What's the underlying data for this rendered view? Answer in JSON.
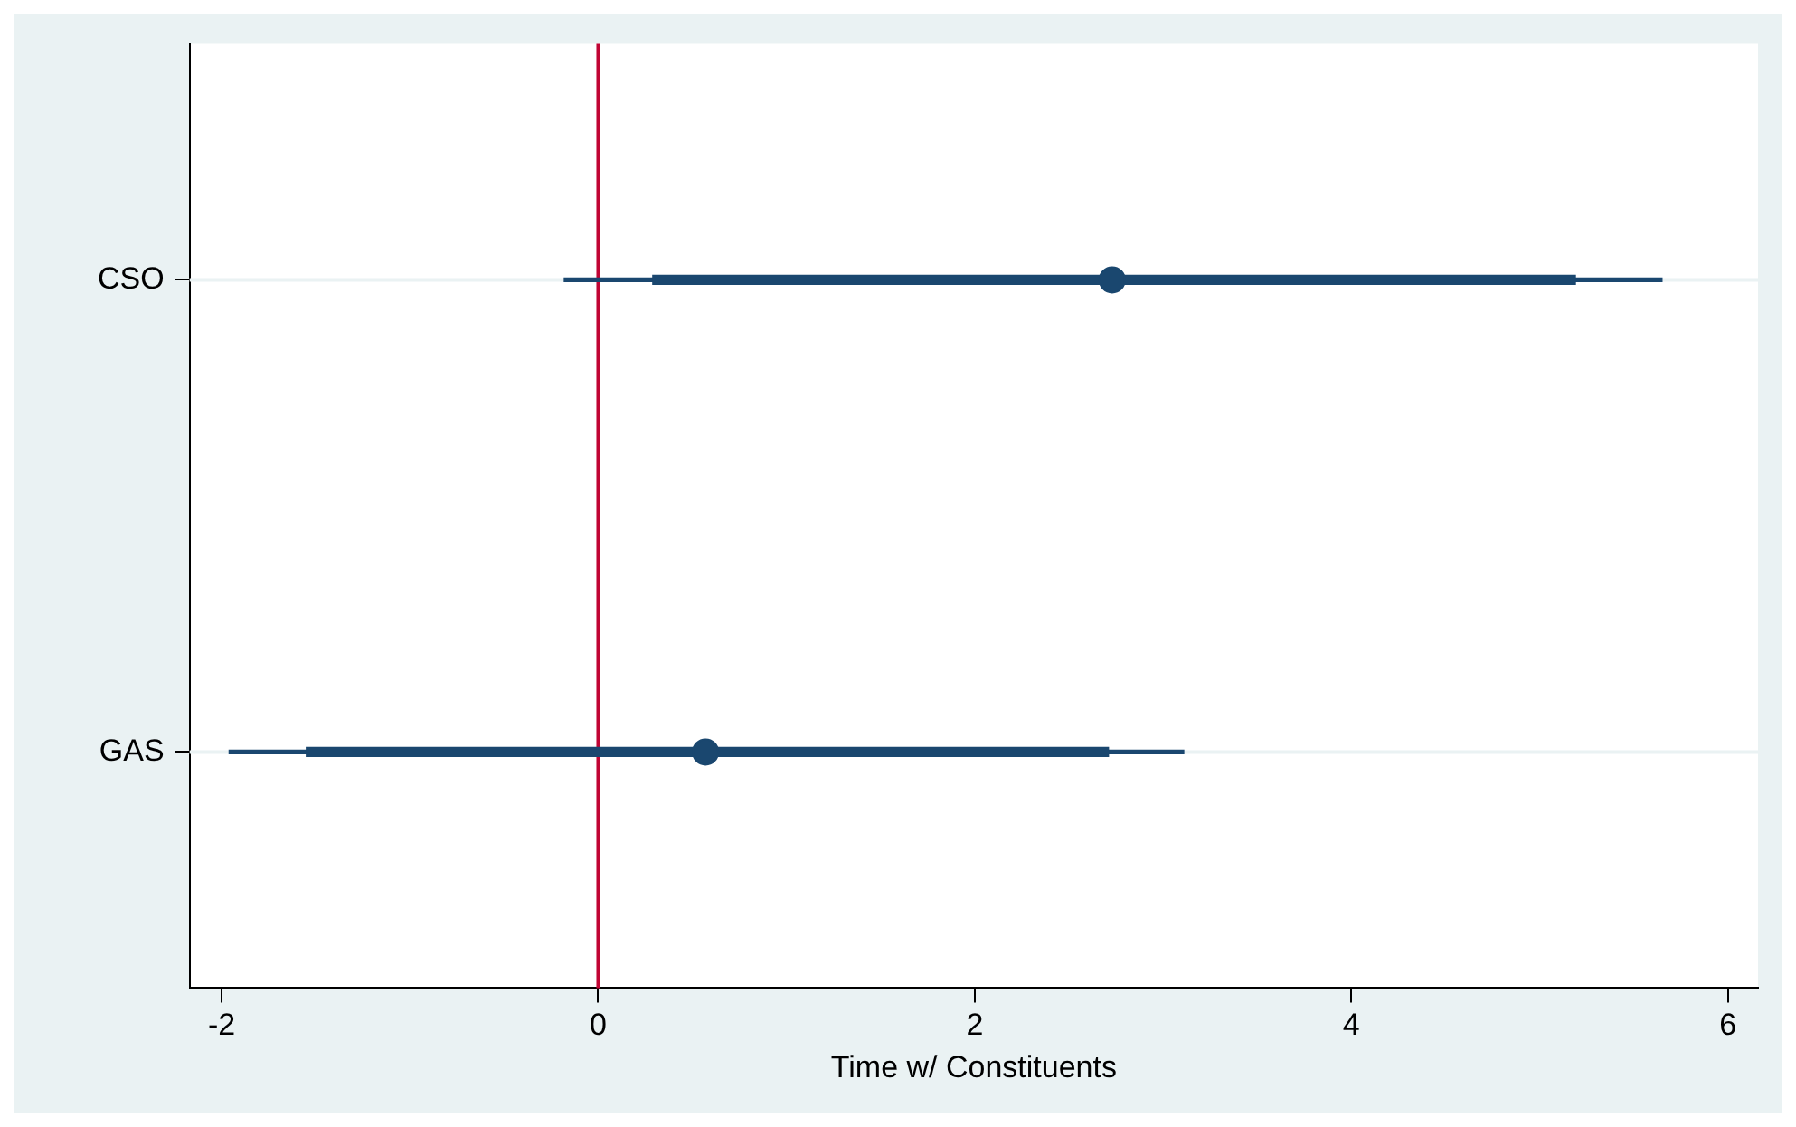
{
  "chart_data": {
    "type": "bar",
    "orientation": "horizontal",
    "xlabel": "Time w/ Constituents",
    "categories": [
      "CSO",
      "GAS"
    ],
    "xlim": [
      -2.17,
      6.16
    ],
    "xticks": [
      -2,
      0,
      2,
      4,
      6
    ],
    "grid": "y",
    "legend": false,
    "ref_lines": [
      {
        "axis": "x",
        "value": 0,
        "color": "#c10534"
      }
    ],
    "series": [
      {
        "color": "#1a476f",
        "base": [
          -0.18,
          -1.96
        ],
        "values": [
          5.83,
          5.07
        ]
      },
      {
        "color": "#1a476f",
        "base": [
          0.29,
          -1.55
        ],
        "values": [
          4.9,
          4.26
        ]
      },
      {
        "type": "scatter",
        "color": "#1a476f",
        "marker": "circle",
        "values": [
          2.73,
          0.57
        ]
      }
    ]
  }
}
